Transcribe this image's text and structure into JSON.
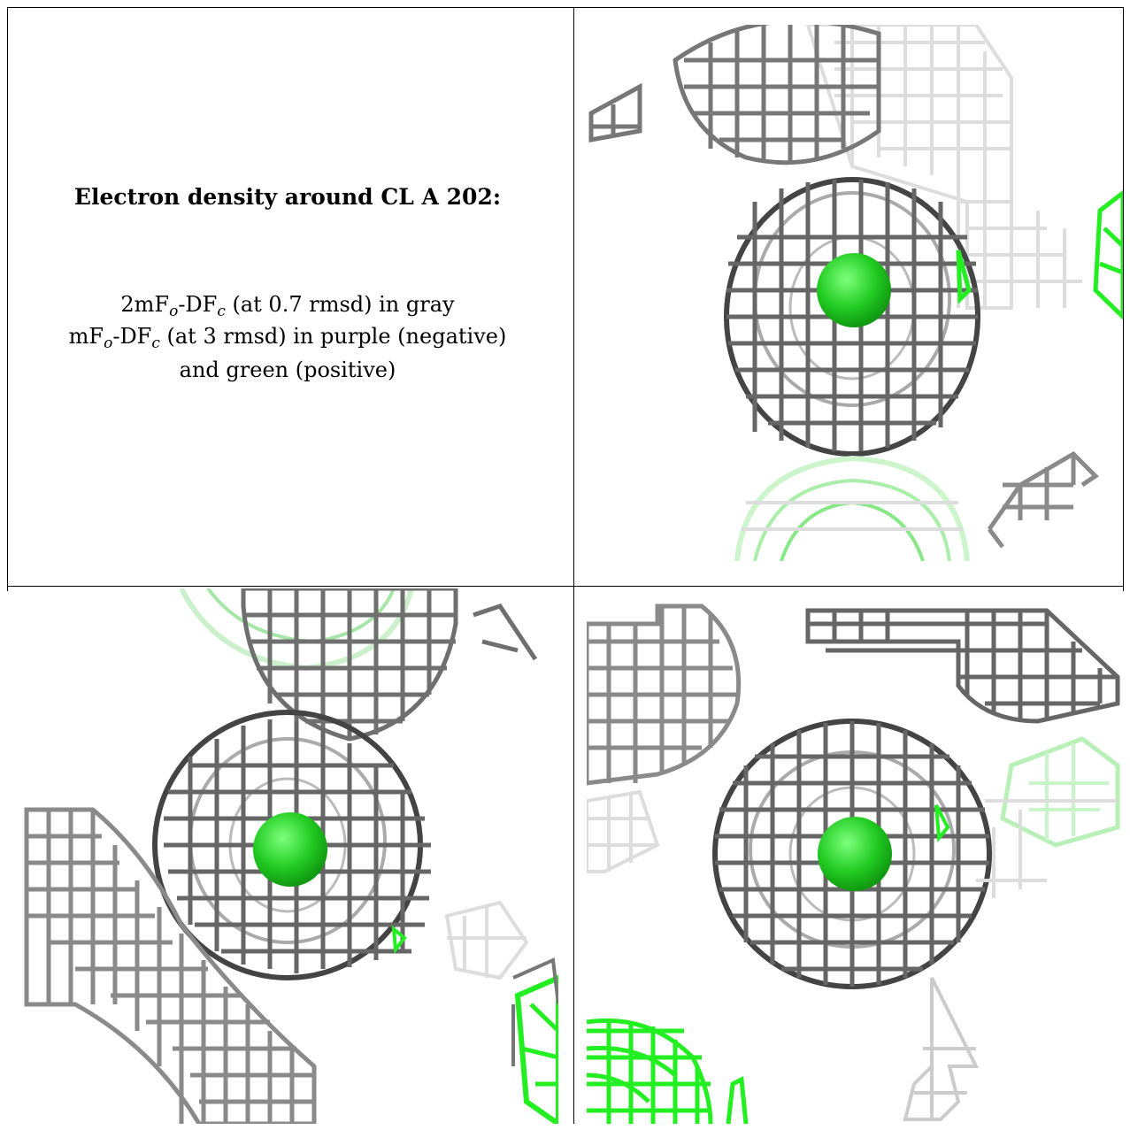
{
  "caption": {
    "title": "Electron density around CL A 202:",
    "line1_a": "2mF",
    "line1_sub1": "o",
    "line1_b": "-DF",
    "line1_sub2": "c",
    "line1_c": " (at 0.7 rmsd) in gray",
    "line2_a": "mF",
    "line2_sub1": "o",
    "line2_b": "-DF",
    "line2_sub2": "c",
    "line2_c": " (at 3 rmsd) in purple (negative)",
    "line3": "and green (positive)"
  },
  "colors": {
    "gray_mesh": "#8a8a8a",
    "dark_mesh": "#555555",
    "light_mesh": "#d8d8d8",
    "green_positive": "#22dd22",
    "green_sphere": "#33cc33"
  },
  "panels": [
    "density-view-1",
    "density-view-2",
    "density-view-3"
  ]
}
